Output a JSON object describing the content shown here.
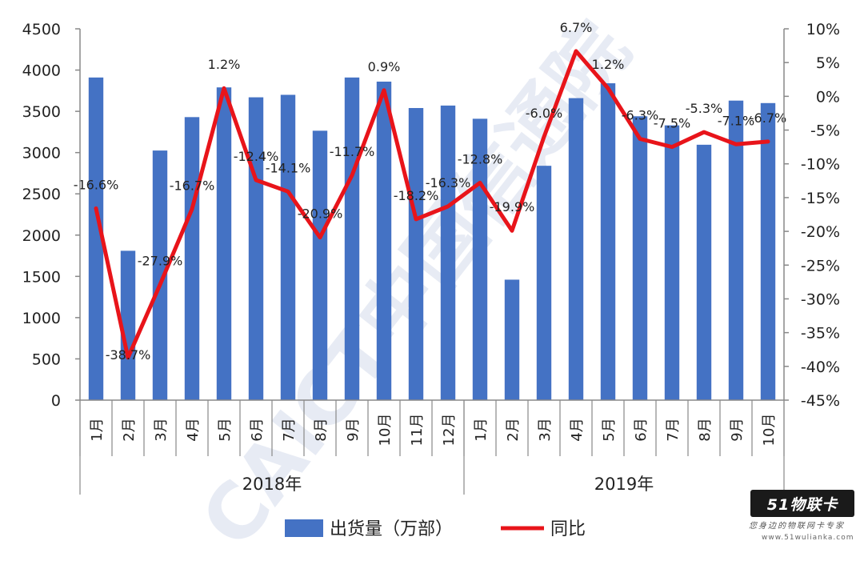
{
  "chart_data": {
    "type": "bar+line",
    "title": "",
    "groups": [
      {
        "label": "2018年",
        "months": [
          "1月",
          "2月",
          "3月",
          "4月",
          "5月",
          "6月",
          "7月",
          "8月",
          "9月",
          "10月",
          "11月",
          "12月"
        ]
      },
      {
        "label": "2019年",
        "months": [
          "1月",
          "2月",
          "3月",
          "4月",
          "5月",
          "6月",
          "7月",
          "8月",
          "9月",
          "10月"
        ]
      }
    ],
    "series": [
      {
        "name": "出货量（万部）",
        "type": "bar",
        "axis": "left",
        "color": "#4472C4",
        "values": [
          3910,
          1810,
          3025,
          3430,
          3790,
          3670,
          3700,
          3265,
          3910,
          3860,
          3540,
          3570,
          3410,
          1460,
          2840,
          3660,
          3840,
          3440,
          3330,
          3095,
          3630,
          3600
        ]
      },
      {
        "name": "同比",
        "type": "line",
        "axis": "right",
        "color": "#E8141A",
        "values": [
          -16.6,
          -38.7,
          -27.9,
          -16.7,
          1.2,
          -12.4,
          -14.1,
          -20.9,
          -11.7,
          0.9,
          -18.2,
          -16.3,
          -12.8,
          -19.9,
          -6.0,
          6.7,
          1.2,
          -6.3,
          -7.5,
          -5.3,
          -7.1,
          -6.7
        ],
        "labels": [
          "-16.6%",
          "-38.7%",
          "-27.9%",
          "-16.7%",
          "1.2%",
          "-12.4%",
          "-14.1%",
          "-20.9%",
          "-11.7%",
          "0.9%",
          "-18.2%",
          "-16.3%",
          "-12.8%",
          "-19.9%",
          "-6.0%",
          "6.7%",
          "1.2%",
          "-6.3%",
          "-7.5%",
          "-5.3%",
          "-7.1%",
          "-6.7%"
        ]
      }
    ],
    "y_left": {
      "min": 0,
      "max": 4500,
      "step": 500,
      "ticks": [
        "0",
        "500",
        "1000",
        "1500",
        "2000",
        "2500",
        "3000",
        "3500",
        "4000",
        "4500"
      ]
    },
    "y_right": {
      "min": -45,
      "max": 10,
      "step": 5,
      "ticks": [
        "-45%",
        "-40%",
        "-35%",
        "-30%",
        "-25%",
        "-20%",
        "-15%",
        "-10%",
        "-5%",
        "0%",
        "5%",
        "10%"
      ]
    },
    "grid": false,
    "legend_position": "bottom"
  },
  "watermark": {
    "text": "CAICT中国信通院",
    "logo": "51物联卡",
    "slogan": "您身边的物联网卡专家",
    "url": "www.51wulianka.com"
  }
}
